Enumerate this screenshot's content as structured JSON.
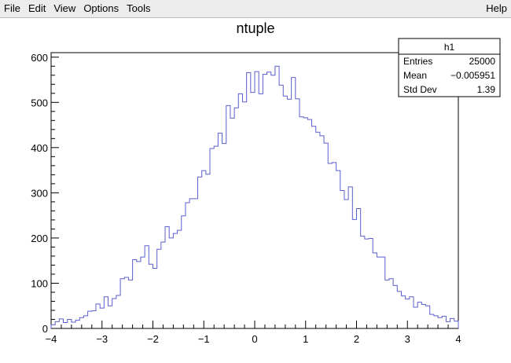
{
  "menu": {
    "file": "File",
    "edit": "Edit",
    "view": "View",
    "options": "Options",
    "tools": "Tools",
    "help": "Help"
  },
  "colors": {
    "line": "#5b5fcf"
  },
  "stats_box": {
    "title": "h1",
    "rows": [
      {
        "label": "Entries",
        "value": "25000"
      },
      {
        "label": "Mean",
        "value": "−0.005951"
      },
      {
        "label": "Std Dev",
        "value": "1.39"
      }
    ]
  },
  "chart_data": {
    "type": "histogram",
    "title": "ntuple",
    "xlim": [
      -4,
      4
    ],
    "ylim": [
      0,
      610
    ],
    "x_ticks": [
      "−4",
      "−3",
      "−2",
      "−1",
      "0",
      "1",
      "2",
      "3",
      "4"
    ],
    "y_ticks": [
      "0",
      "100",
      "200",
      "300",
      "400",
      "500",
      "600"
    ],
    "bin_width": 0.08,
    "counts": [
      8,
      15,
      21,
      13,
      20,
      14,
      18,
      24,
      28,
      38,
      39,
      54,
      45,
      70,
      50,
      66,
      73,
      110,
      113,
      107,
      152,
      148,
      158,
      183,
      142,
      133,
      175,
      191,
      225,
      200,
      210,
      217,
      249,
      278,
      287,
      287,
      335,
      349,
      341,
      398,
      403,
      432,
      409,
      493,
      465,
      488,
      519,
      501,
      566,
      522,
      568,
      519,
      562,
      567,
      560,
      580,
      538,
      514,
      507,
      555,
      508,
      468,
      466,
      462,
      447,
      434,
      426,
      410,
      365,
      367,
      349,
      305,
      285,
      313,
      241,
      265,
      204,
      198,
      199,
      167,
      158,
      158,
      107,
      110,
      95,
      82,
      72,
      65,
      70,
      47,
      58,
      53,
      50,
      31,
      28,
      24,
      27,
      15,
      22,
      16
    ]
  }
}
